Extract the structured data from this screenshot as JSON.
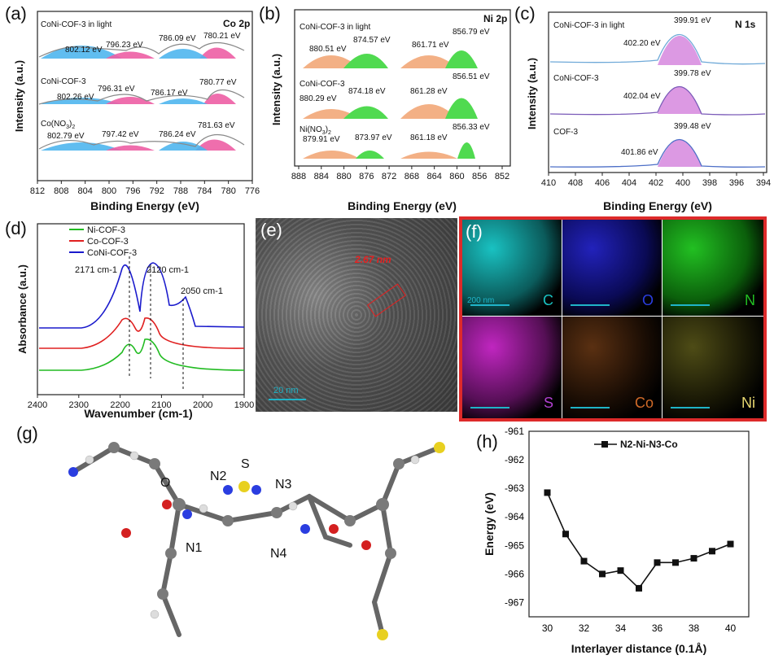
{
  "panels": {
    "a": {
      "label": "(a)",
      "tag": "Co 2p",
      "xlabel": "Binding Energy (eV)",
      "ylabel": "Intensity (a.u.)",
      "xlim": [
        812,
        776
      ],
      "ticks": [
        "812",
        "808",
        "804",
        "800",
        "796",
        "792",
        "788",
        "784",
        "780",
        "776"
      ],
      "traces": [
        {
          "name": "CoNi-COF-3 in light",
          "peaks": [
            "802.12 eV",
            "796.23 eV",
            "786.09 eV",
            "780.21 eV"
          ]
        },
        {
          "name": "CoNi-COF-3",
          "peaks": [
            "802.26 eV",
            "796.31 eV",
            "786.17 eV",
            "780.77 eV"
          ]
        },
        {
          "name": "Co(NO3)2",
          "peaks": [
            "802.79 eV",
            "797.42 eV",
            "786.24 eV",
            "781.63 eV"
          ]
        }
      ]
    },
    "b": {
      "label": "(b)",
      "tag": "Ni 2p",
      "xlabel": "Binding Energy (eV)",
      "ylabel": "Intensity (a.u.)",
      "xlim": [
        888,
        850
      ],
      "ticks": [
        "888",
        "884",
        "880",
        "876",
        "872",
        "868",
        "864",
        "860",
        "856",
        "852"
      ],
      "traces": [
        {
          "name": "CoNi-COF-3 in light",
          "peaks": [
            "880.51 eV",
            "874.57 eV",
            "861.71 eV",
            "856.79 eV"
          ]
        },
        {
          "name": "CoNi-COF-3",
          "peaks": [
            "880.29 eV",
            "874.18 eV",
            "861.28 eV",
            "856.51 eV"
          ]
        },
        {
          "name": "Ni(NO3)2",
          "peaks": [
            "879.91 eV",
            "873.97 eV",
            "861.18 eV",
            "856.33 eV"
          ]
        }
      ]
    },
    "c": {
      "label": "(c)",
      "tag": "N 1s",
      "xlabel": "Binding Energy (eV)",
      "ylabel": "Intensity (a.u.)",
      "xlim": [
        410,
        394
      ],
      "ticks": [
        "410",
        "408",
        "406",
        "404",
        "402",
        "400",
        "398",
        "396",
        "394"
      ],
      "traces": [
        {
          "name": "CoNi-COF-3 in light",
          "peaks": [
            "402.20 eV",
            "399.91 eV"
          ]
        },
        {
          "name": "CoNi-COF-3",
          "peaks": [
            "402.04 eV",
            "399.78 eV"
          ]
        },
        {
          "name": "COF-3",
          "peaks": [
            "401.86 eV",
            "399.48 eV"
          ]
        }
      ]
    },
    "d": {
      "label": "(d)",
      "xlabel": "Wavenumber (cm-1)",
      "ylabel": "Absorbance (a.u.)",
      "xlim": [
        2400,
        1900
      ],
      "ticks": [
        "2400",
        "2300",
        "2200",
        "2100",
        "2000",
        "1900"
      ],
      "legend": [
        "Ni-COF-3",
        "Co-COF-3",
        "CoNi-COF-3"
      ],
      "annotations": [
        "2171 cm-1",
        "2120 cm-1",
        "2050 cm-1"
      ]
    },
    "e": {
      "label": "(e)",
      "spacing": "2.67 nm",
      "scale": "20 nm"
    },
    "f": {
      "label": "(f)",
      "scale": "200 nm",
      "elements": [
        "C",
        "O",
        "N",
        "S",
        "Co",
        "Ni"
      ]
    },
    "g": {
      "label": "(g)",
      "atoms": [
        "O",
        "N2",
        "S",
        "N3",
        "N1",
        "N4"
      ]
    },
    "h": {
      "label": "(h)"
    }
  },
  "colors": {
    "ni_cof": "#22bb22",
    "co_cof": "#e02020",
    "coni_cof": "#1a1acc",
    "fit_blue": "#4fb6ef",
    "fit_pink": "#ee5fa5",
    "fit_orange": "#f2a878",
    "fit_green": "#3ed63e",
    "fit_violet": "#d98ee0",
    "map_C": "#19c2c2",
    "map_O": "#1a1aa8",
    "map_N": "#22b022",
    "map_S": "#c026c0",
    "map_Co": "#c86a2c",
    "map_Ni": "#b8b23a"
  },
  "chart_data": [
    {
      "type": "line",
      "title": "N2-Ni-N3-Co",
      "xlabel": "Interlayer distance (0.1Å)",
      "ylabel": "Energy (eV)",
      "xlim": [
        29,
        41
      ],
      "ylim": [
        -967.5,
        -961
      ],
      "xticks": [
        "30",
        "32",
        "34",
        "36",
        "38",
        "40"
      ],
      "yticks": [
        "-961",
        "-962",
        "-963",
        "-964",
        "-965",
        "-966",
        "-967"
      ],
      "series": [
        {
          "name": "N2-Ni-N3-Co",
          "x": [
            30,
            31,
            32,
            33,
            34,
            35,
            36,
            37,
            38,
            39,
            40
          ],
          "y": [
            -963.15,
            -964.6,
            -965.55,
            -966.0,
            -965.88,
            -966.5,
            -965.6,
            -965.6,
            -965.45,
            -965.2,
            -964.95
          ]
        }
      ]
    }
  ]
}
